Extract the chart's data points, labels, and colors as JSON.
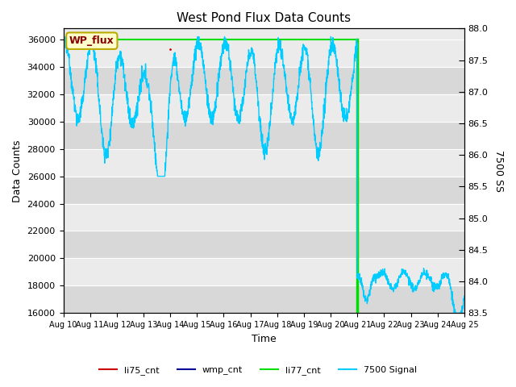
{
  "title": "West Pond Flux Data Counts",
  "xlabel": "Time",
  "ylabel_left": "Data Counts",
  "ylabel_right": "7500 SS",
  "ylim_left": [
    16000,
    36800
  ],
  "ylim_right": [
    83.5,
    88.0
  ],
  "yticks_left": [
    16000,
    18000,
    20000,
    22000,
    24000,
    26000,
    28000,
    30000,
    32000,
    34000,
    36000
  ],
  "yticks_right": [
    83.5,
    84.0,
    84.5,
    85.0,
    85.5,
    86.0,
    86.5,
    87.0,
    87.5,
    88.0
  ],
  "xtick_labels": [
    "Aug 10",
    "Aug 11",
    "Aug 12",
    "Aug 13",
    "Aug 14",
    "Aug 15",
    "Aug 16",
    "Aug 17",
    "Aug 18",
    "Aug 19",
    "Aug 20",
    "Aug 21",
    "Aug 22",
    "Aug 23",
    "Aug 24",
    "Aug 25"
  ],
  "bg_color_light": "#ebebeb",
  "bg_color_dark": "#d8d8d8",
  "fig_color": "#ffffff",
  "li77_color": "#00dd00",
  "cyan_color": "#00ccff",
  "red_color": "#cc0000",
  "blue_color": "#000099",
  "li77_value": 36000,
  "legend_box_color": "#ffffcc",
  "legend_box_edge": "#bbaa00",
  "legend_text_color": "#880000",
  "wp_flux_label": "WP_flux"
}
